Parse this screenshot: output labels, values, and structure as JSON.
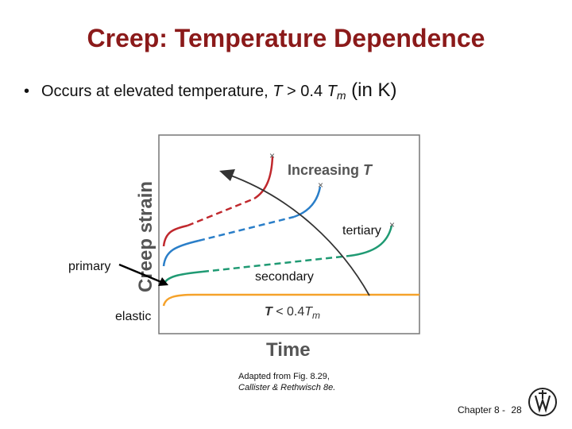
{
  "slide": {
    "title": "Creep: Temperature Dependence",
    "bullet": {
      "text_before": "Occurs at elevated temperature, ",
      "t_symbol": "T",
      "gt": " > 0.4 ",
      "tm_symbol": "T",
      "tm_sub": "m",
      "units": " (in K)"
    }
  },
  "diagram": {
    "y_axis_label": "Creep strain",
    "x_axis_label": "Time",
    "arrow_label_prefix": "Increasing ",
    "arrow_label_symbol": "T",
    "low_t_label_prefix": "T",
    "low_t_label_mid": " < 0.4",
    "low_t_label_symbol": "T",
    "low_t_label_sub": "m",
    "fracture_marker": "×",
    "curve_colors": {
      "red": "#c0282d",
      "blue": "#2a7ec8",
      "green": "#1f9a73",
      "orange": "#f5a22a",
      "arrow": "#333333"
    }
  },
  "annotations": {
    "primary": "primary",
    "secondary": "secondary",
    "tertiary": "tertiary",
    "elastic": "elastic"
  },
  "credit": {
    "line1": "Adapted from Fig. 8.29,",
    "line2": "Callister & Rethwisch 8e."
  },
  "footer": {
    "chapter": "Chapter 8 -",
    "page": "28"
  }
}
